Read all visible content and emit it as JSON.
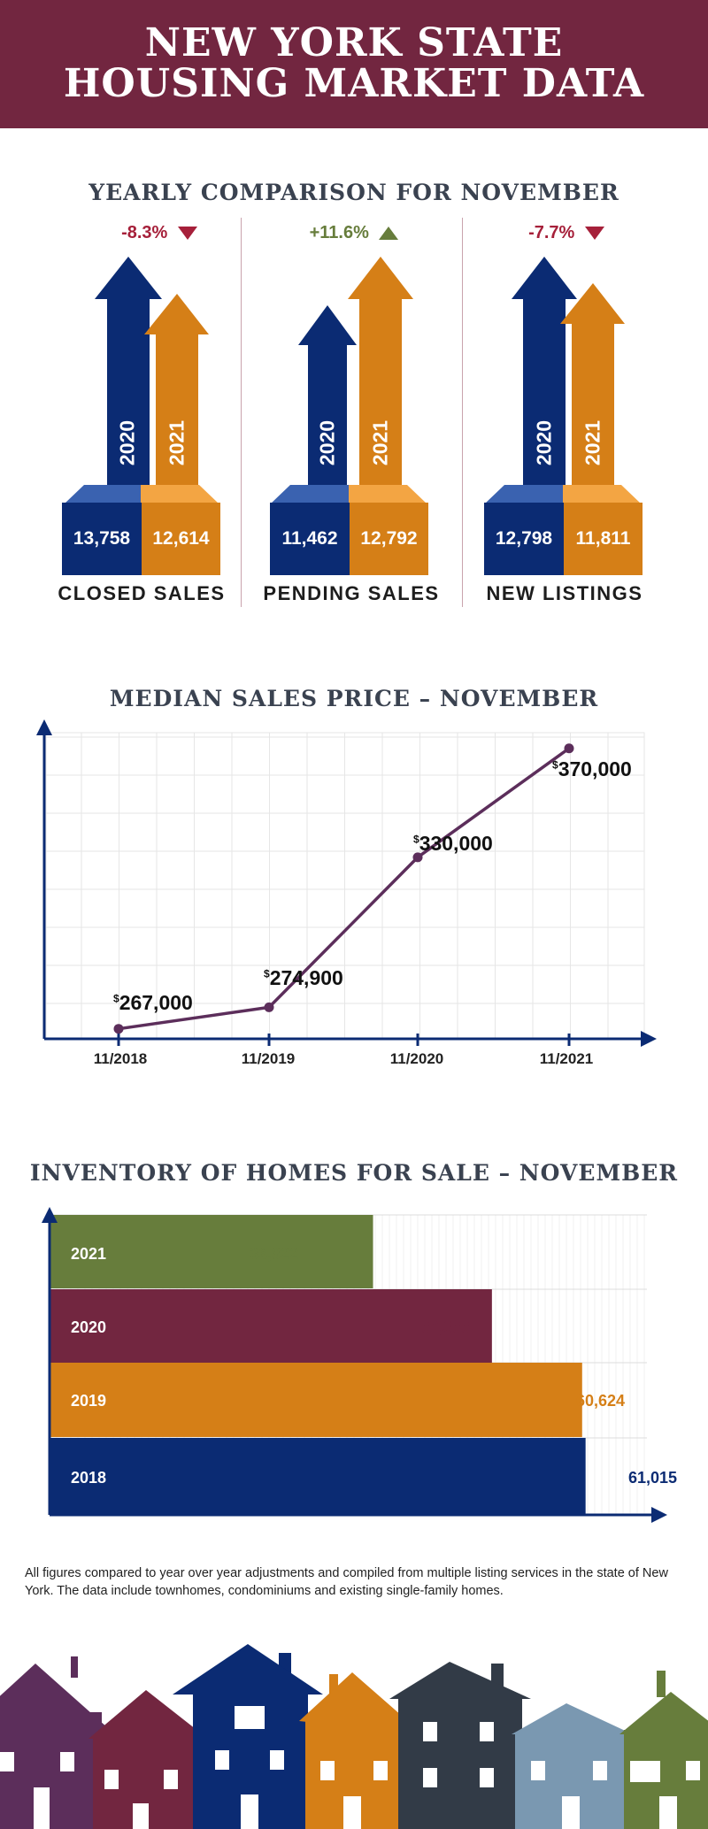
{
  "header": {
    "title_line1": "NEW YORK STATE",
    "title_line2": "HOUSING MARKET DATA"
  },
  "comparison": {
    "title": "YEARLY COMPARISON FOR NOVEMBER",
    "blocks": [
      {
        "caption": "CLOSED SALES",
        "change": "-8.3%",
        "direction": "down",
        "y2020": "13,758",
        "y2021": "12,614"
      },
      {
        "caption": "PENDING SALES",
        "change": "+11.6%",
        "direction": "up",
        "y2020": "11,462",
        "y2021": "12,792"
      },
      {
        "caption": "NEW LISTINGS",
        "change": "-7.7%",
        "direction": "down",
        "y2020": "12,798",
        "y2021": "11,811"
      }
    ],
    "year_a": "2020",
    "year_b": "2021"
  },
  "median": {
    "title": "MEDIAN SALES PRICE – NOVEMBER",
    "currency_symbol": "$",
    "labels": [
      "267,000",
      "274,900",
      "330,000",
      "370,000"
    ]
  },
  "inventory": {
    "title": "INVENTORY OF HOMES FOR SALE – NOVEMBER",
    "rows": [
      {
        "year": "2021",
        "value": "36,822"
      },
      {
        "year": "2020",
        "value": "50,355"
      },
      {
        "year": "2019",
        "value": "60,624"
      },
      {
        "year": "2018",
        "value": "61,015"
      }
    ]
  },
  "footnote": "All figures compared to year over year adjustments and compiled from multiple listing services in the state of New York.  The data include townhomes, condominiums and existing single-family homes.",
  "colors": {
    "maroon": "#722640",
    "navy": "#0b2b73",
    "orange": "#d57f17",
    "green": "#677d3c",
    "purple": "#5c2e5b",
    "red": "#a6203a"
  },
  "chart_data": [
    {
      "type": "line",
      "title": "MEDIAN SALES PRICE – NOVEMBER",
      "x": [
        "11/2018",
        "11/2019",
        "11/2020",
        "11/2021"
      ],
      "series": [
        {
          "values": [
            267000,
            274900,
            330000,
            370000
          ]
        }
      ],
      "ylim": [
        250000,
        380000
      ],
      "grid": true
    },
    {
      "type": "bar",
      "orientation": "horizontal",
      "title": "INVENTORY OF HOMES FOR SALE – NOVEMBER",
      "categories": [
        "2021",
        "2020",
        "2019",
        "2018"
      ],
      "values": [
        36822,
        50355,
        60624,
        61015
      ],
      "xlim": [
        0,
        68000
      ]
    }
  ]
}
